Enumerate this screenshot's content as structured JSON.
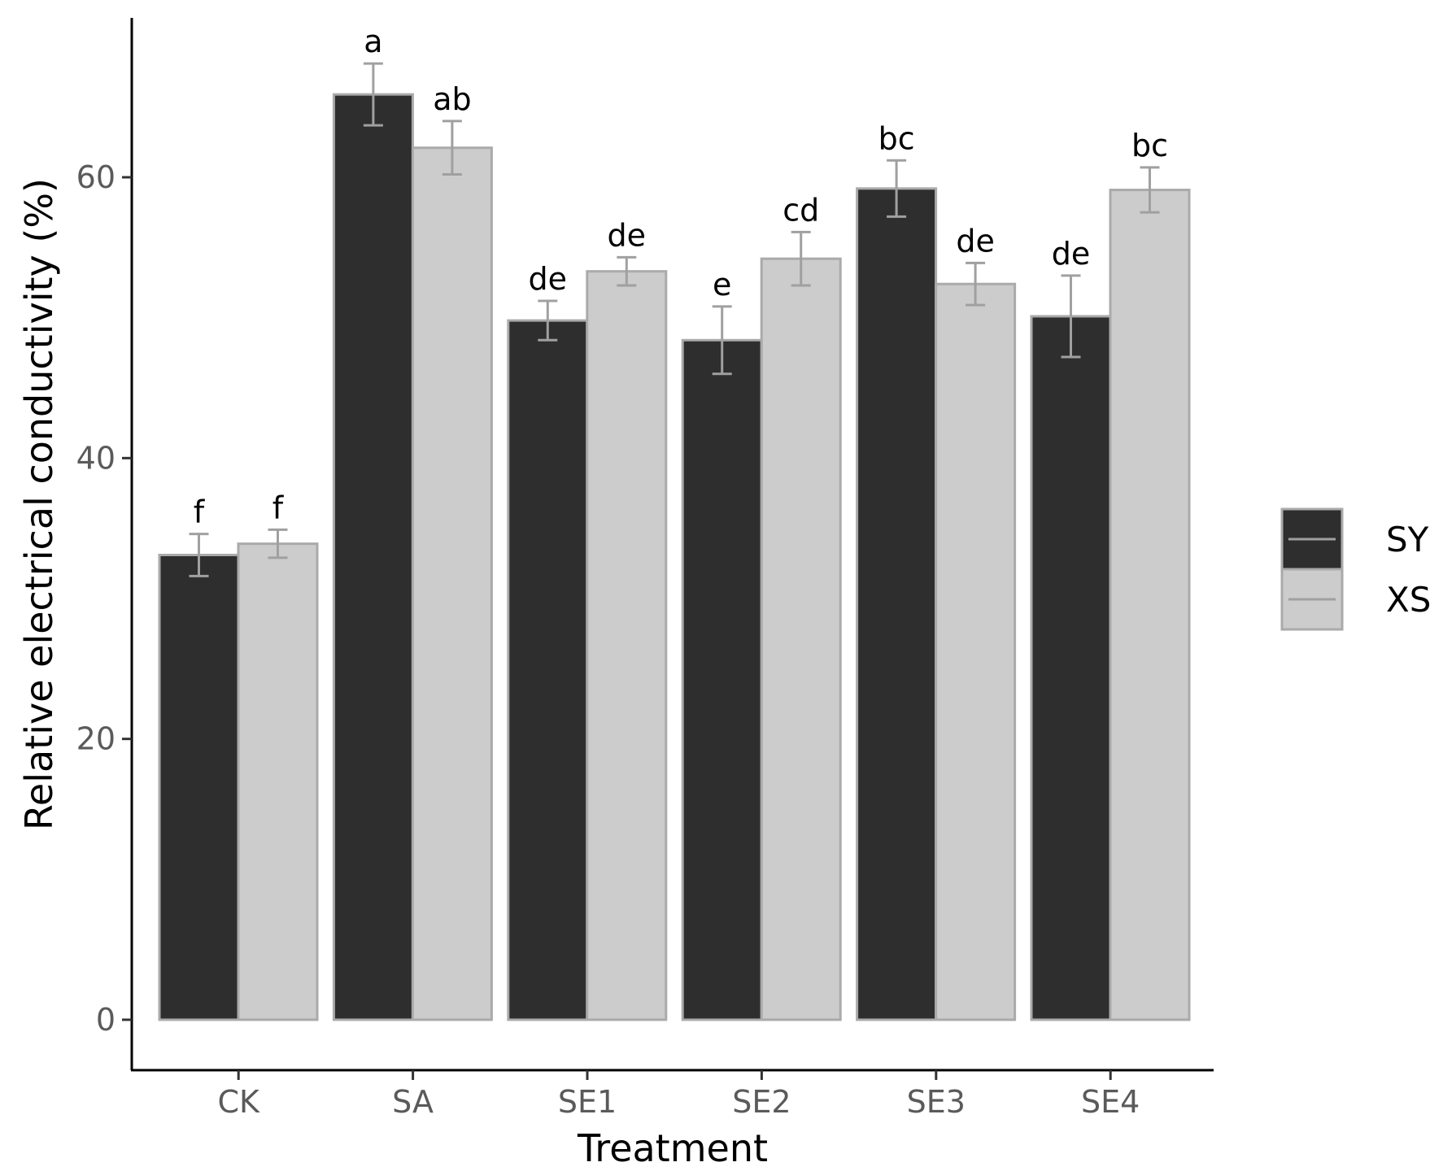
{
  "chart_data": {
    "type": "bar",
    "xlabel": "Treatment",
    "ylabel": "Relative electrical conductivity (%)",
    "categories": [
      "CK",
      "SA",
      "SE1",
      "SE2",
      "SE3",
      "SE4"
    ],
    "ylim": [
      -3.5,
      71
    ],
    "yticks": [
      0,
      20,
      40,
      60
    ],
    "grid": false,
    "legend_position": "right",
    "series": [
      {
        "name": "SY",
        "color": "#2e2e2e",
        "values": [
          33.1,
          65.9,
          49.8,
          48.4,
          59.2,
          50.1
        ],
        "errors": [
          1.5,
          2.2,
          1.4,
          2.4,
          2.0,
          2.9
        ],
        "labels": [
          "f",
          "a",
          "de",
          "e",
          "bc",
          "de"
        ]
      },
      {
        "name": "XS",
        "color": "#cccccc",
        "values": [
          33.9,
          62.1,
          53.3,
          54.2,
          52.4,
          59.1
        ],
        "errors": [
          1.0,
          1.9,
          1.0,
          1.9,
          1.5,
          1.6
        ],
        "labels": [
          "f",
          "ab",
          "de",
          "cd",
          "de",
          "bc"
        ]
      }
    ],
    "bar_outline_color": "#aaaaaa",
    "errorbar_color": "#a0a0a0"
  }
}
